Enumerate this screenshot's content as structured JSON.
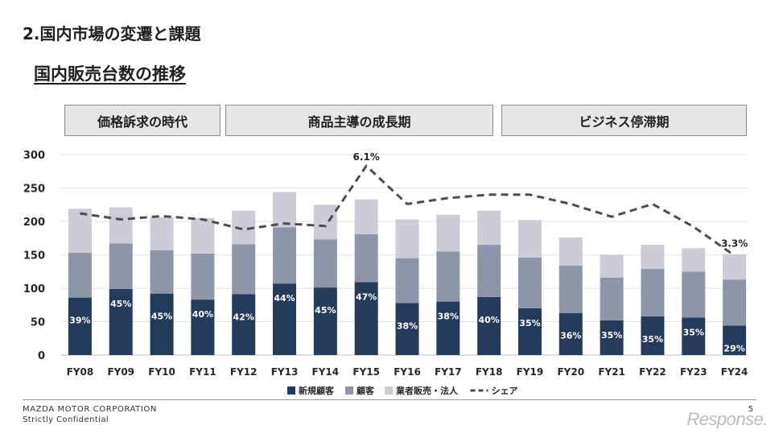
{
  "header": {
    "section_title": "2.国内市場の変遷と課題",
    "page_subtitle": "国内販売台数の推移"
  },
  "eras": [
    {
      "label": "価格訴求の時代"
    },
    {
      "label": "商品主導の成長期"
    },
    {
      "label": "ビジネス停滞期"
    }
  ],
  "chart_data": {
    "type": "bar",
    "stacked": true,
    "categories": [
      "FY08",
      "FY09",
      "FY10",
      "FY11",
      "FY12",
      "FY13",
      "FY14",
      "FY15",
      "FY16",
      "FY17",
      "FY18",
      "FY19",
      "FY20",
      "FY21",
      "FY22",
      "FY23",
      "FY24"
    ],
    "ylim": [
      0,
      300
    ],
    "yticks": [
      0,
      50,
      100,
      150,
      200,
      250,
      300
    ],
    "grid": true,
    "legend_position": "bottom",
    "series": [
      {
        "name": "新規顧客",
        "color": "#243b5c",
        "values": [
          86,
          99,
          92,
          83,
          91,
          107,
          101,
          109,
          78,
          80,
          87,
          70,
          63,
          52,
          58,
          56,
          44
        ],
        "labels": [
          "39%",
          "45%",
          "45%",
          "40%",
          "42%",
          "44%",
          "45%",
          "47%",
          "38%",
          "38%",
          "40%",
          "35%",
          "36%",
          "35%",
          "35%",
          "35%",
          "29%"
        ]
      },
      {
        "name": "顧客",
        "color": "#8d95a8",
        "values": [
          67,
          68,
          65,
          69,
          75,
          84,
          72,
          72,
          67,
          75,
          78,
          76,
          71,
          64,
          71,
          69,
          69
        ]
      },
      {
        "name": "業者販売・法人",
        "color": "#ccccd6",
        "values": [
          66,
          54,
          49,
          53,
          50,
          53,
          52,
          52,
          58,
          55,
          51,
          56,
          42,
          34,
          36,
          35,
          38
        ]
      },
      {
        "name": "シェア",
        "type": "line",
        "style": "dashed",
        "color": "#4d4d4d",
        "values": [
          212,
          203,
          208,
          203,
          188,
          197,
          193,
          283,
          226,
          235,
          240,
          240,
          226,
          207,
          226,
          192,
          149
        ],
        "labels": {
          "FY15": "6.1%",
          "FY24": "3.3%"
        }
      }
    ]
  },
  "footer": {
    "company": "MAZDA MOTOR CORPORATION",
    "confidential": "Strictly Confidential",
    "page_number": "5",
    "watermark": "Response."
  }
}
